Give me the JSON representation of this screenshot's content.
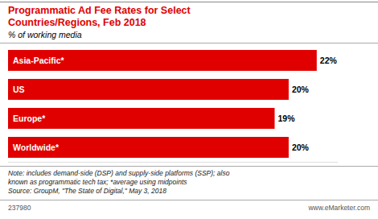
{
  "chart_data": {
    "type": "bar",
    "orientation": "horizontal",
    "title": "Programmatic Ad Fee Rates for Select\nCountries/Regions, Feb 2018",
    "subtitle": "% of working media",
    "categories": [
      "Asia-Pacific*",
      "US",
      "Europe*",
      "Worldwide*"
    ],
    "values": [
      22,
      20,
      19,
      20
    ],
    "value_labels": [
      "22%",
      "20%",
      "19%",
      "20%"
    ],
    "color": "#e00000",
    "xlim": [
      0,
      23.5
    ],
    "data_labels": true,
    "tick_labels": false,
    "grid": false,
    "annotations": [
      "Note: includes demand-side (DSP) and supply-side platforms (SSP); also",
      "known as programmatic tech tax; *average using midpoints",
      "Source: GroupM, \"The State of Digital,\" May 3, 2018",
      "237980",
      "www.eMarketer.com"
    ]
  }
}
